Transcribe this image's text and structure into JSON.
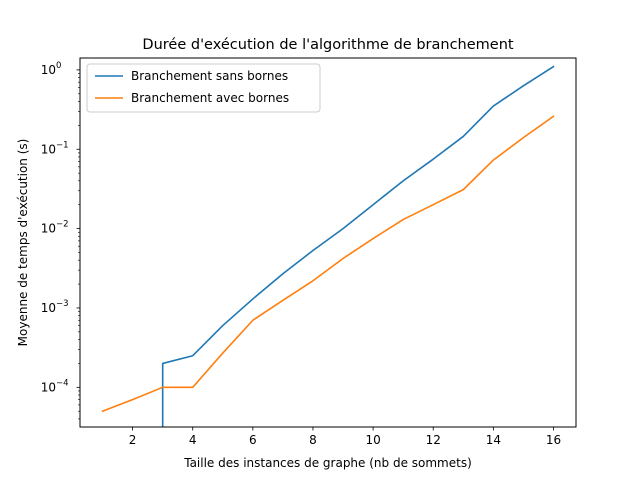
{
  "chart_data": {
    "type": "line",
    "title": "Durée d'exécution de l'algorithme de branchement",
    "xlabel": "Taille des instances de graphe (nb de sommets)",
    "ylabel": "Moyenne de temps d'exécution (s)",
    "xlim": [
      0.25,
      16.75
    ],
    "ylim_log10": [
      -4.5,
      0.15
    ],
    "yscale": "log",
    "grid": false,
    "legend_position": "top-left",
    "x_ticks": [
      2,
      4,
      6,
      8,
      10,
      12,
      14,
      16
    ],
    "y_ticks": [
      {
        "exp": -4,
        "label": "10",
        "sup": "−4"
      },
      {
        "exp": -3,
        "label": "10",
        "sup": "−3"
      },
      {
        "exp": -2,
        "label": "10",
        "sup": "−2"
      },
      {
        "exp": -1,
        "label": "10",
        "sup": "−1"
      },
      {
        "exp": 0,
        "label": "10",
        "sup": "0"
      }
    ],
    "series": [
      {
        "name": "Branchement sans bornes",
        "color": "#1f77b4",
        "x": [
          3,
          3,
          4,
          5,
          6,
          7,
          8,
          9,
          10,
          11,
          12,
          13,
          14,
          15,
          16
        ],
        "y": [
          1e-05,
          0.0002,
          0.00025,
          0.0006,
          0.0013,
          0.0027,
          0.0053,
          0.01,
          0.02,
          0.04,
          0.075,
          0.145,
          0.35,
          0.63,
          1.1
        ]
      },
      {
        "name": "Branchement avec bornes",
        "color": "#ff7f0e",
        "x": [
          1,
          2,
          3,
          4,
          5,
          6,
          7,
          8,
          9,
          10,
          11,
          12,
          13,
          14,
          15,
          16
        ],
        "y": [
          5e-05,
          7e-05,
          0.0001,
          0.0001,
          0.00027,
          0.0007,
          0.00125,
          0.0022,
          0.0042,
          0.0075,
          0.013,
          0.02,
          0.031,
          0.073,
          0.14,
          0.26
        ]
      }
    ]
  }
}
